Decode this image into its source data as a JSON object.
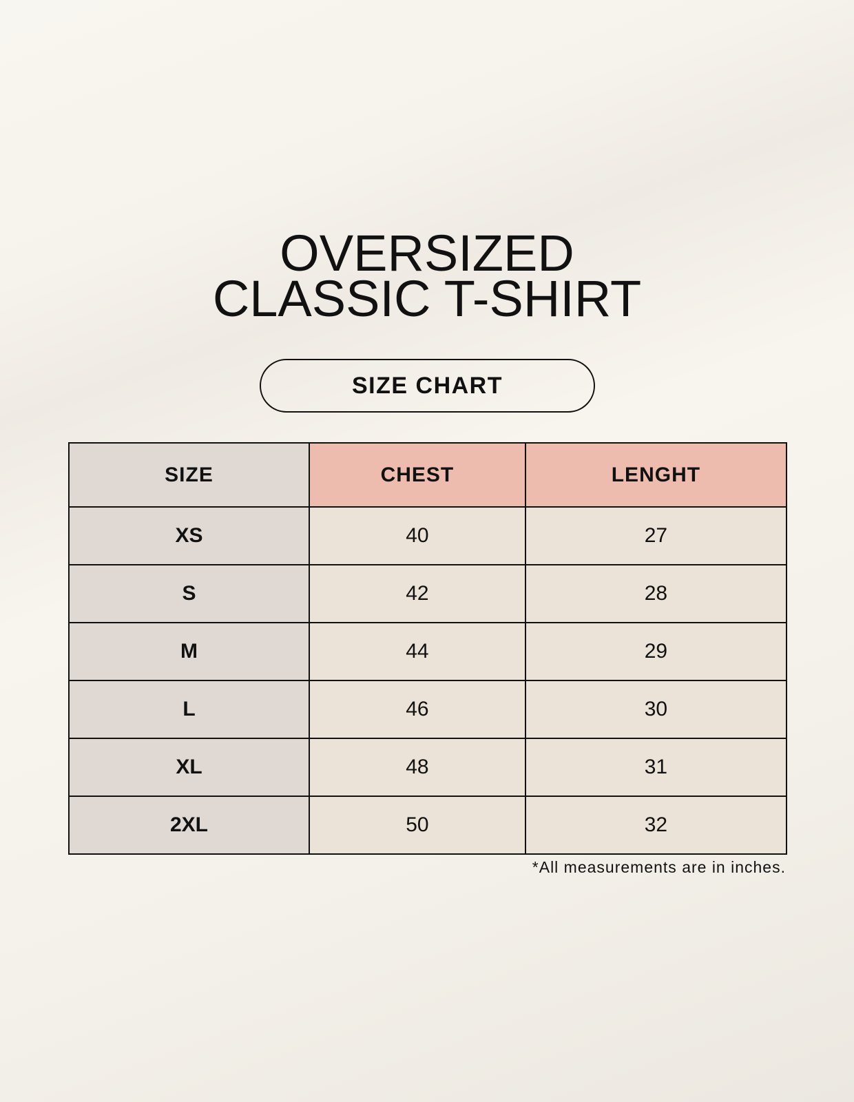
{
  "title": {
    "line1": "OVERSIZED",
    "line2": "CLASSIC T-SHIRT"
  },
  "subtitle": "SIZE CHART",
  "table": {
    "headers": [
      "SIZE",
      "CHEST",
      "LENGHT"
    ],
    "rows": [
      [
        "XS",
        "40",
        "27"
      ],
      [
        "S",
        "42",
        "28"
      ],
      [
        "M",
        "44",
        "29"
      ],
      [
        "L",
        "46",
        "30"
      ],
      [
        "XL",
        "48",
        "31"
      ],
      [
        "2XL",
        "50",
        "32"
      ]
    ]
  },
  "footnote": "*All measurements are in inches.",
  "colors": {
    "size_column": "#e0d9d3",
    "header_accent": "#edbcae",
    "cell": "#ebe3d8"
  }
}
